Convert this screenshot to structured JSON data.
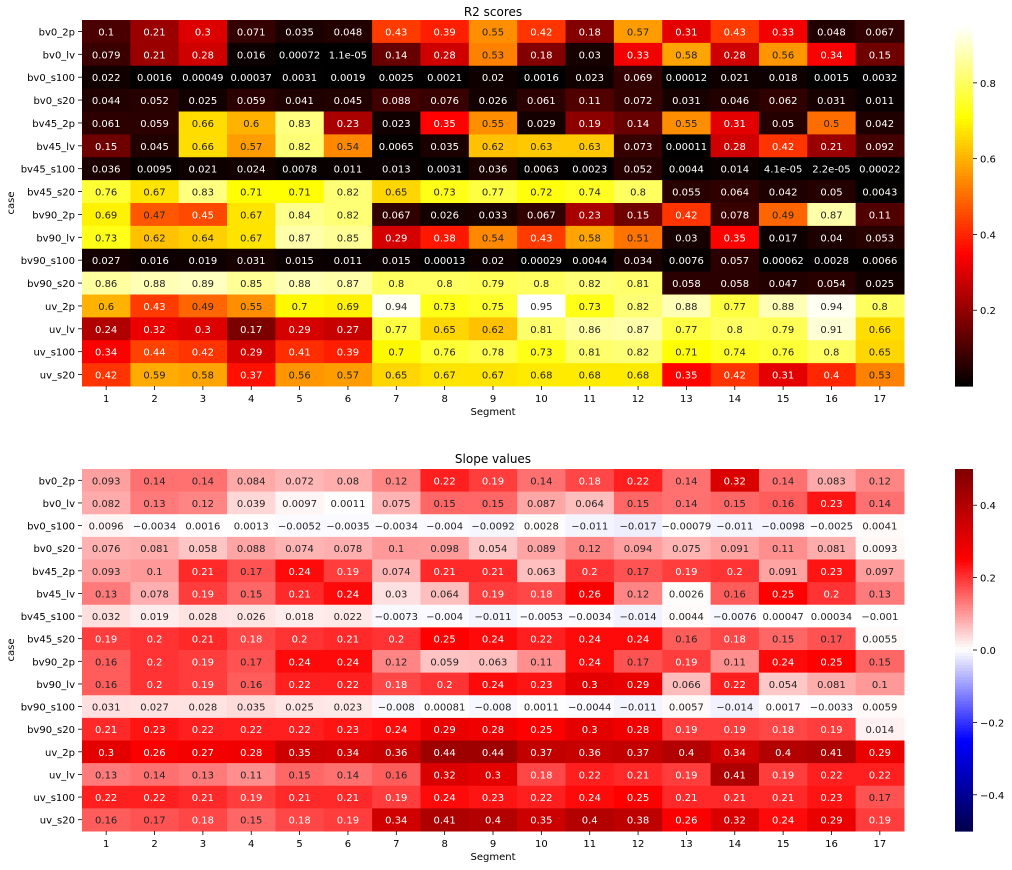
{
  "chart_data": [
    {
      "type": "heatmap",
      "title": "R2 scores",
      "xlabel": "Segment",
      "ylabel": "case",
      "colormap": "hot",
      "color_range": [
        0.0,
        0.95
      ],
      "colorbar_ticks": [
        "0.2",
        "0.4",
        "0.6",
        "0.8"
      ],
      "colorbar_tick_values": [
        0.2,
        0.4,
        0.6,
        0.8
      ],
      "x_categories": [
        "1",
        "2",
        "3",
        "4",
        "5",
        "6",
        "7",
        "8",
        "9",
        "10",
        "11",
        "12",
        "13",
        "14",
        "15",
        "16",
        "17"
      ],
      "y_categories": [
        "bv0_2p",
        "bv0_lv",
        "bv0_s100",
        "bv0_s20",
        "bv45_2p",
        "bv45_lv",
        "bv45_s100",
        "bv45_s20",
        "bv90_2p",
        "bv90_lv",
        "bv90_s100",
        "bv90_s20",
        "uv_2p",
        "uv_lv",
        "uv_s100",
        "uv_s20"
      ],
      "values": [
        [
          "0.1",
          "0.21",
          "0.3",
          "0.071",
          "0.035",
          "0.048",
          "0.43",
          "0.39",
          "0.55",
          "0.42",
          "0.18",
          "0.57",
          "0.31",
          "0.43",
          "0.33",
          "0.048",
          "0.067"
        ],
        [
          "0.079",
          "0.21",
          "0.28",
          "0.016",
          "0.00072",
          "1.1e-05",
          "0.14",
          "0.28",
          "0.53",
          "0.18",
          "0.03",
          "0.33",
          "0.58",
          "0.28",
          "0.56",
          "0.34",
          "0.15"
        ],
        [
          "0.022",
          "0.0016",
          "0.00049",
          "0.00037",
          "0.0031",
          "0.0019",
          "0.0025",
          "0.0021",
          "0.02",
          "0.0016",
          "0.023",
          "0.069",
          "0.00012",
          "0.021",
          "0.018",
          "0.0015",
          "0.0032"
        ],
        [
          "0.044",
          "0.052",
          "0.025",
          "0.059",
          "0.041",
          "0.045",
          "0.088",
          "0.076",
          "0.026",
          "0.061",
          "0.11",
          "0.072",
          "0.031",
          "0.046",
          "0.062",
          "0.031",
          "0.011"
        ],
        [
          "0.061",
          "0.059",
          "0.66",
          "0.6",
          "0.83",
          "0.23",
          "0.023",
          "0.35",
          "0.55",
          "0.029",
          "0.19",
          "0.14",
          "0.55",
          "0.31",
          "0.05",
          "0.5",
          "0.042"
        ],
        [
          "0.15",
          "0.045",
          "0.66",
          "0.57",
          "0.82",
          "0.54",
          "0.0065",
          "0.035",
          "0.62",
          "0.63",
          "0.63",
          "0.073",
          "0.00011",
          "0.28",
          "0.42",
          "0.21",
          "0.092"
        ],
        [
          "0.036",
          "0.0095",
          "0.021",
          "0.024",
          "0.0078",
          "0.011",
          "0.013",
          "0.0031",
          "0.036",
          "0.0063",
          "0.0023",
          "0.052",
          "0.0044",
          "0.014",
          "4.1e-05",
          "2.2e-05",
          "0.00022"
        ],
        [
          "0.76",
          "0.67",
          "0.83",
          "0.71",
          "0.71",
          "0.82",
          "0.65",
          "0.73",
          "0.77",
          "0.72",
          "0.74",
          "0.8",
          "0.055",
          "0.064",
          "0.042",
          "0.05",
          "0.0043"
        ],
        [
          "0.69",
          "0.47",
          "0.45",
          "0.67",
          "0.84",
          "0.82",
          "0.067",
          "0.026",
          "0.033",
          "0.067",
          "0.23",
          "0.15",
          "0.42",
          "0.078",
          "0.49",
          "0.87",
          "0.11"
        ],
        [
          "0.73",
          "0.62",
          "0.64",
          "0.67",
          "0.87",
          "0.85",
          "0.29",
          "0.38",
          "0.54",
          "0.43",
          "0.58",
          "0.51",
          "0.03",
          "0.35",
          "0.017",
          "0.04",
          "0.053"
        ],
        [
          "0.027",
          "0.016",
          "0.019",
          "0.031",
          "0.015",
          "0.011",
          "0.015",
          "0.00013",
          "0.02",
          "0.00029",
          "0.0044",
          "0.034",
          "0.0076",
          "0.057",
          "0.00062",
          "0.0028",
          "0.0066"
        ],
        [
          "0.86",
          "0.88",
          "0.89",
          "0.85",
          "0.88",
          "0.87",
          "0.8",
          "0.8",
          "0.79",
          "0.8",
          "0.82",
          "0.81",
          "0.058",
          "0.058",
          "0.047",
          "0.054",
          "0.025"
        ],
        [
          "0.6",
          "0.43",
          "0.49",
          "0.55",
          "0.7",
          "0.69",
          "0.94",
          "0.73",
          "0.75",
          "0.95",
          "0.73",
          "0.82",
          "0.88",
          "0.77",
          "0.88",
          "0.94",
          "0.8"
        ],
        [
          "0.24",
          "0.32",
          "0.3",
          "0.17",
          "0.29",
          "0.27",
          "0.77",
          "0.65",
          "0.62",
          "0.81",
          "0.86",
          "0.87",
          "0.77",
          "0.8",
          "0.79",
          "0.91",
          "0.66"
        ],
        [
          "0.34",
          "0.44",
          "0.42",
          "0.29",
          "0.41",
          "0.39",
          "0.7",
          "0.76",
          "0.78",
          "0.73",
          "0.81",
          "0.82",
          "0.71",
          "0.74",
          "0.76",
          "0.8",
          "0.65"
        ],
        [
          "0.42",
          "0.59",
          "0.58",
          "0.37",
          "0.56",
          "0.57",
          "0.65",
          "0.67",
          "0.67",
          "0.68",
          "0.68",
          "0.68",
          "0.35",
          "0.42",
          "0.31",
          "0.4",
          "0.53"
        ]
      ]
    },
    {
      "type": "heatmap",
      "title": "Slope values",
      "xlabel": "Segment",
      "ylabel": "case",
      "colormap": "seismic",
      "color_range": [
        -0.5,
        0.5
      ],
      "colorbar_ticks": [
        "0.4",
        "0.2",
        "0.0",
        "−0.2",
        "−0.4"
      ],
      "colorbar_tick_values": [
        0.4,
        0.2,
        0.0,
        -0.2,
        -0.4
      ],
      "x_categories": [
        "1",
        "2",
        "3",
        "4",
        "5",
        "6",
        "7",
        "8",
        "9",
        "10",
        "11",
        "12",
        "13",
        "14",
        "15",
        "16",
        "17"
      ],
      "y_categories": [
        "bv0_2p",
        "bv0_lv",
        "bv0_s100",
        "bv0_s20",
        "bv45_2p",
        "bv45_lv",
        "bv45_s100",
        "bv45_s20",
        "bv90_2p",
        "bv90_lv",
        "bv90_s100",
        "bv90_s20",
        "uv_2p",
        "uv_lv",
        "uv_s100",
        "uv_s20"
      ],
      "values": [
        [
          "0.093",
          "0.14",
          "0.14",
          "0.084",
          "0.072",
          "0.08",
          "0.12",
          "0.22",
          "0.19",
          "0.14",
          "0.18",
          "0.22",
          "0.14",
          "0.32",
          "0.14",
          "0.083",
          "0.12"
        ],
        [
          "0.082",
          "0.13",
          "0.12",
          "0.039",
          "0.0097",
          "0.0011",
          "0.075",
          "0.15",
          "0.15",
          "0.087",
          "0.064",
          "0.15",
          "0.14",
          "0.15",
          "0.16",
          "0.23",
          "0.14"
        ],
        [
          "0.0096",
          "-0.0034",
          "0.0016",
          "0.0013",
          "-0.0052",
          "-0.0035",
          "-0.0034",
          "-0.004",
          "-0.0092",
          "0.0028",
          "-0.011",
          "-0.017",
          "-0.00079",
          "-0.011",
          "-0.0098",
          "-0.0025",
          "0.0041"
        ],
        [
          "0.076",
          "0.081",
          "0.058",
          "0.088",
          "0.074",
          "0.078",
          "0.1",
          "0.098",
          "0.054",
          "0.089",
          "0.12",
          "0.094",
          "0.075",
          "0.091",
          "0.11",
          "0.081",
          "0.0093"
        ],
        [
          "0.093",
          "0.1",
          "0.21",
          "0.17",
          "0.24",
          "0.19",
          "0.074",
          "0.21",
          "0.21",
          "0.063",
          "0.2",
          "0.17",
          "0.19",
          "0.2",
          "0.091",
          "0.23",
          "0.097"
        ],
        [
          "0.13",
          "0.078",
          "0.19",
          "0.15",
          "0.21",
          "0.24",
          "0.03",
          "0.064",
          "0.19",
          "0.18",
          "0.26",
          "0.12",
          "0.0026",
          "0.16",
          "0.25",
          "0.2",
          "0.13"
        ],
        [
          "0.032",
          "0.019",
          "0.028",
          "0.026",
          "0.018",
          "0.022",
          "-0.0073",
          "-0.004",
          "-0.011",
          "-0.0053",
          "-0.0034",
          "-0.014",
          "0.0044",
          "-0.0076",
          "0.00047",
          "0.00034",
          "-0.001"
        ],
        [
          "0.19",
          "0.2",
          "0.21",
          "0.18",
          "0.2",
          "0.21",
          "0.2",
          "0.25",
          "0.24",
          "0.22",
          "0.24",
          "0.24",
          "0.16",
          "0.18",
          "0.15",
          "0.17",
          "0.0055"
        ],
        [
          "0.16",
          "0.2",
          "0.19",
          "0.17",
          "0.24",
          "0.24",
          "0.12",
          "0.059",
          "0.063",
          "0.11",
          "0.24",
          "0.17",
          "0.19",
          "0.11",
          "0.24",
          "0.25",
          "0.15"
        ],
        [
          "0.16",
          "0.2",
          "0.19",
          "0.16",
          "0.22",
          "0.22",
          "0.18",
          "0.2",
          "0.24",
          "0.23",
          "0.3",
          "0.29",
          "0.066",
          "0.22",
          "0.054",
          "0.081",
          "0.1"
        ],
        [
          "0.031",
          "0.027",
          "0.028",
          "0.035",
          "0.025",
          "0.023",
          "-0.008",
          "0.00081",
          "-0.008",
          "0.0011",
          "-0.0044",
          "-0.011",
          "0.0057",
          "-0.014",
          "0.0017",
          "-0.0033",
          "0.0059"
        ],
        [
          "0.21",
          "0.23",
          "0.22",
          "0.22",
          "0.22",
          "0.23",
          "0.24",
          "0.29",
          "0.28",
          "0.25",
          "0.3",
          "0.28",
          "0.19",
          "0.19",
          "0.18",
          "0.19",
          "0.014"
        ],
        [
          "0.3",
          "0.26",
          "0.27",
          "0.28",
          "0.35",
          "0.34",
          "0.36",
          "0.44",
          "0.44",
          "0.37",
          "0.36",
          "0.37",
          "0.4",
          "0.34",
          "0.4",
          "0.41",
          "0.29"
        ],
        [
          "0.13",
          "0.14",
          "0.13",
          "0.11",
          "0.15",
          "0.14",
          "0.16",
          "0.32",
          "0.3",
          "0.18",
          "0.22",
          "0.21",
          "0.19",
          "0.41",
          "0.19",
          "0.22",
          "0.22"
        ],
        [
          "0.22",
          "0.22",
          "0.21",
          "0.19",
          "0.21",
          "0.21",
          "0.19",
          "0.24",
          "0.23",
          "0.22",
          "0.24",
          "0.25",
          "0.21",
          "0.21",
          "0.21",
          "0.23",
          "0.17"
        ],
        [
          "0.16",
          "0.17",
          "0.18",
          "0.15",
          "0.18",
          "0.19",
          "0.34",
          "0.41",
          "0.4",
          "0.35",
          "0.4",
          "0.38",
          "0.26",
          "0.32",
          "0.24",
          "0.29",
          "0.19"
        ]
      ]
    }
  ]
}
